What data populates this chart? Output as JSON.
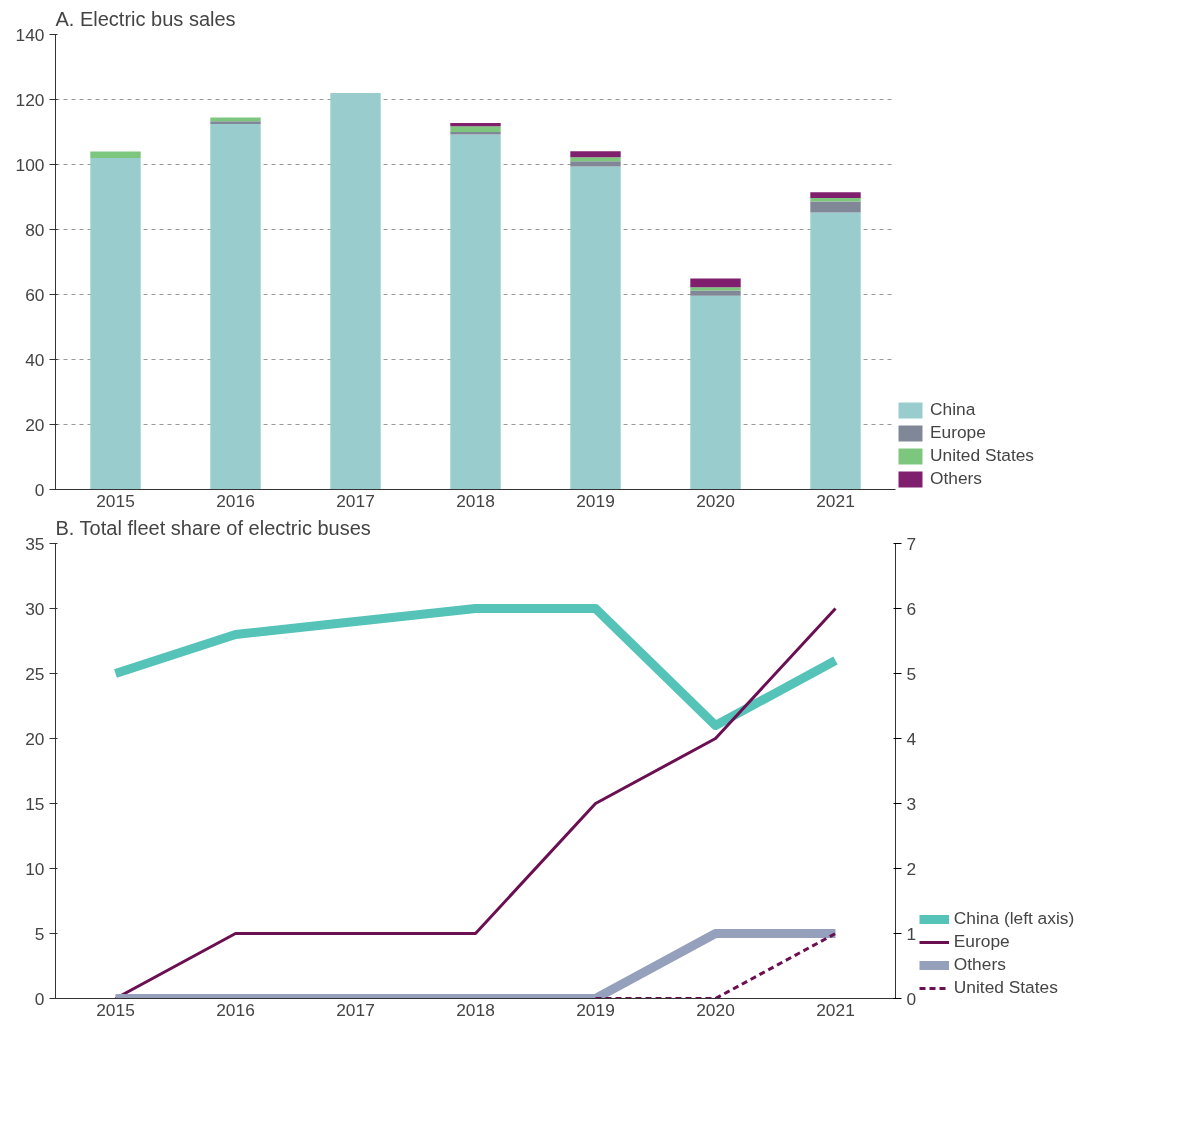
{
  "chart_data": [
    {
      "type": "bar",
      "title": "A. Electric bus sales",
      "categories": [
        "2015",
        "2016",
        "2017",
        "2018",
        "2019",
        "2020",
        "2021"
      ],
      "stacked": true,
      "ylim": [
        0,
        140
      ],
      "yticks": [
        0,
        20,
        40,
        60,
        80,
        100,
        120,
        140
      ],
      "grid": "y",
      "legend": "right",
      "series": [
        {
          "name": "China",
          "color": "#99cdcd",
          "values": [
            102,
            112.5,
            122,
            109.2,
            99.4,
            59.6,
            85.2
          ]
        },
        {
          "name": "Europe",
          "color": "#808898",
          "values": [
            0,
            0.8,
            0,
            0.8,
            1.6,
            1.6,
            3.4
          ]
        },
        {
          "name": "United States",
          "color": "#7dc67e",
          "values": [
            2,
            1.2,
            0,
            1.8,
            1.2,
            1.0,
            1.1
          ]
        },
        {
          "name": "Others",
          "color": "#7f1f6e",
          "values": [
            0,
            0,
            0,
            1.0,
            1.9,
            2.7,
            1.8
          ]
        }
      ]
    },
    {
      "type": "line",
      "title": "B. Total fleet share of electric buses",
      "categories": [
        "2015",
        "2016",
        "2017",
        "2018",
        "2019",
        "2020",
        "2021"
      ],
      "ylim": [
        0,
        35
      ],
      "yticks": [
        0,
        5,
        10,
        15,
        20,
        25,
        30,
        35
      ],
      "y2lim": [
        0,
        7
      ],
      "y2ticks": [
        0,
        1,
        2,
        3,
        4,
        5,
        6,
        7
      ],
      "grid": false,
      "legend": "right",
      "series": [
        {
          "name": "China (left axis)",
          "color": "#55c3b8",
          "values": [
            25,
            28,
            29,
            30,
            30,
            21,
            26
          ]
        },
        {
          "name": "Europe",
          "color": "#6b0f52",
          "axis": "y2",
          "values": [
            0,
            1,
            1,
            1,
            3,
            4,
            6
          ]
        },
        {
          "name": "Others",
          "color": "#95a0bc",
          "axis": "y2",
          "values": [
            0,
            0,
            0,
            0,
            0,
            1,
            1
          ]
        },
        {
          "name": "United States",
          "color": "#6b0f52",
          "axis": "y2",
          "line_style": "dashed",
          "values": [
            null,
            null,
            null,
            null,
            0,
            0,
            1
          ]
        }
      ]
    }
  ]
}
